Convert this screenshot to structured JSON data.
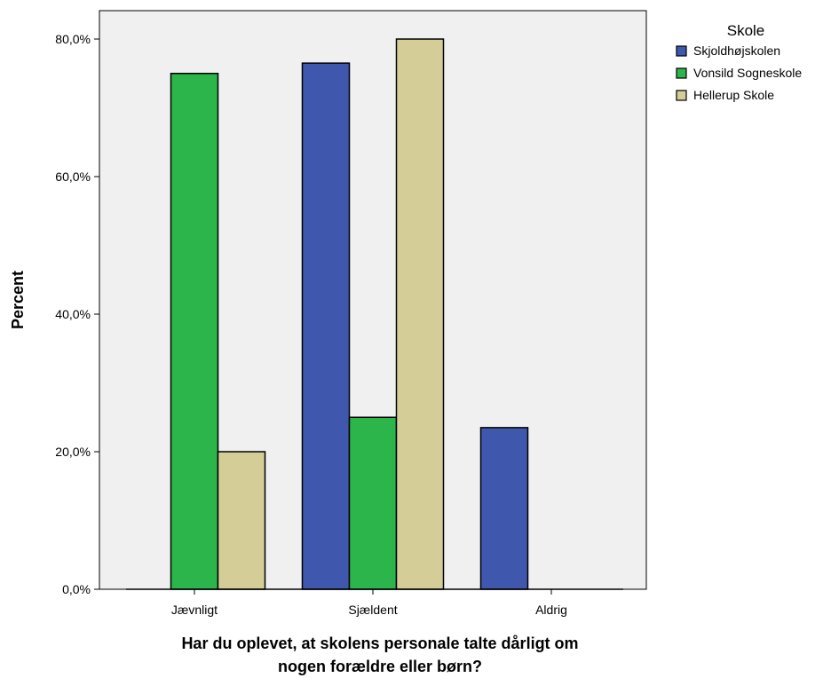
{
  "chart_data": {
    "type": "bar",
    "xlabel_lines": [
      "Har du oplevet, at skolens personale talte dårligt om",
      "nogen forældre eller børn?"
    ],
    "ylabel": "Percent",
    "categories": [
      "Jævnligt",
      "Sjældent",
      "Aldrig"
    ],
    "series": [
      {
        "name": "Skjoldhøjskolen",
        "color": "#3f58ad",
        "values": [
          0,
          76.5,
          23.5
        ]
      },
      {
        "name": "Vonsild Sogneskole",
        "color": "#2bb54a",
        "values": [
          75,
          25,
          0
        ]
      },
      {
        "name": "Hellerup Skole",
        "color": "#d4cd98",
        "values": [
          20,
          80,
          0
        ]
      }
    ],
    "ylim": [
      0,
      80
    ],
    "yticks": [
      0,
      20,
      40,
      60,
      80
    ],
    "ytick_labels": [
      "0,0%",
      "20,0%",
      "40,0%",
      "60,0%",
      "80,0%"
    ],
    "legend": {
      "title": "Skole",
      "position": "top-right"
    },
    "plot_background": "#f0f0f0",
    "grid": false
  }
}
